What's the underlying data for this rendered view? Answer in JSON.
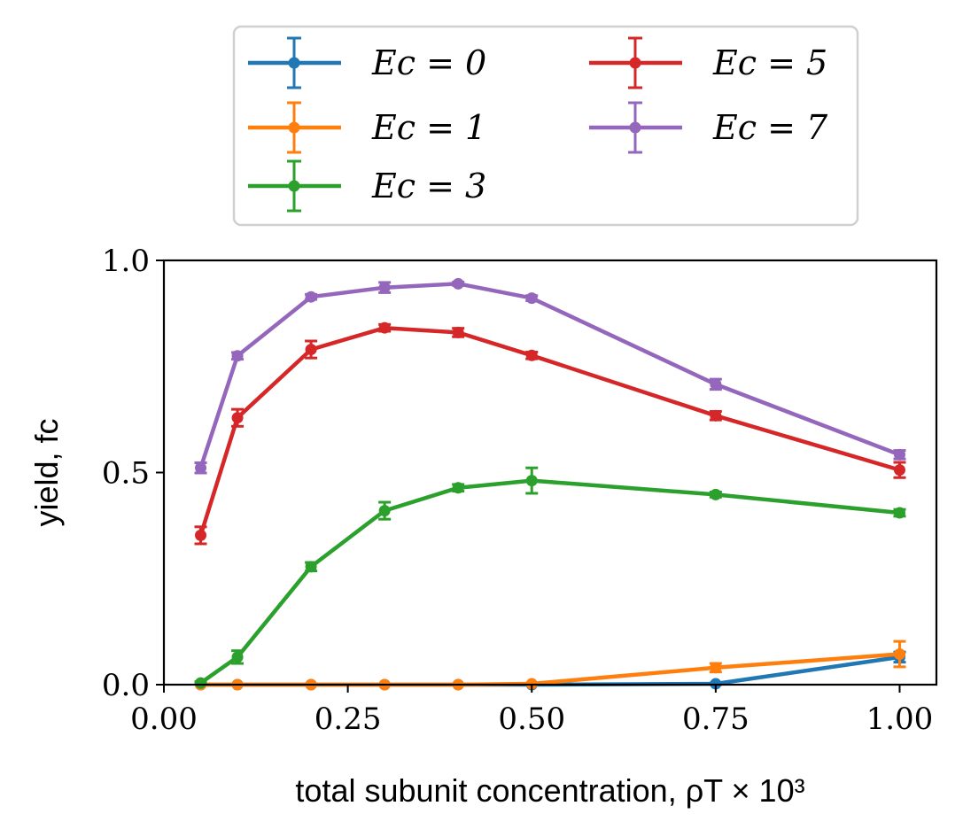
{
  "chart_data": {
    "type": "line",
    "xlabel": "total subunit concentration, ρT × 10³",
    "ylabel": "yield, fc",
    "xlim": [
      0.0,
      1.05
    ],
    "ylim": [
      0.0,
      1.0
    ],
    "xticks": [
      0.0,
      0.25,
      0.5,
      0.75,
      1.0
    ],
    "xtick_labels": [
      "0.00",
      "0.25",
      "0.50",
      "0.75",
      "1.00"
    ],
    "yticks": [
      0.0,
      0.5,
      1.0
    ],
    "ytick_labels": [
      "0.0",
      "0.5",
      "1.0"
    ],
    "grid": false,
    "legend_placement": "top-center-outside",
    "legend_columns": 2,
    "series": [
      {
        "name": "E_c = 0",
        "legend_label": "Ec = 0",
        "color": "#1f77b4",
        "x": [
          0.05,
          0.1,
          0.2,
          0.3,
          0.4,
          0.5,
          0.75,
          1.0
        ],
        "y": [
          0.0,
          0.0,
          0.0,
          0.0,
          0.0,
          0.0,
          0.002,
          0.065
        ],
        "err": [
          0.0,
          0.0,
          0.0,
          0.0,
          0.0,
          0.0,
          0.002,
          0.012
        ]
      },
      {
        "name": "E_c = 1",
        "legend_label": "Ec = 1",
        "color": "#ff7f0e",
        "x": [
          0.05,
          0.1,
          0.2,
          0.3,
          0.4,
          0.5,
          0.75,
          1.0
        ],
        "y": [
          0.0,
          0.0,
          0.0,
          0.0,
          0.0,
          0.002,
          0.04,
          0.072
        ],
        "err": [
          0.0,
          0.0,
          0.0,
          0.0,
          0.0,
          0.002,
          0.01,
          0.03
        ]
      },
      {
        "name": "E_c = 3",
        "legend_label": "Ec = 3",
        "color": "#2ca02c",
        "x": [
          0.05,
          0.1,
          0.2,
          0.3,
          0.4,
          0.5,
          0.75,
          1.0
        ],
        "y": [
          0.004,
          0.065,
          0.278,
          0.41,
          0.464,
          0.481,
          0.448,
          0.405
        ],
        "err": [
          0.003,
          0.015,
          0.01,
          0.02,
          0.008,
          0.03,
          0.006,
          0.008
        ]
      },
      {
        "name": "E_c = 5",
        "legend_label": "Ec = 5",
        "color": "#d62728",
        "x": [
          0.05,
          0.1,
          0.2,
          0.3,
          0.4,
          0.5,
          0.75,
          1.0
        ],
        "y": [
          0.352,
          0.629,
          0.79,
          0.841,
          0.83,
          0.776,
          0.634,
          0.506
        ],
        "err": [
          0.02,
          0.02,
          0.02,
          0.008,
          0.01,
          0.008,
          0.01,
          0.018
        ]
      },
      {
        "name": "E_c = 7",
        "legend_label": "Ec = 7",
        "color": "#9467bd",
        "x": [
          0.05,
          0.1,
          0.2,
          0.3,
          0.4,
          0.5,
          0.75,
          1.0
        ],
        "y": [
          0.511,
          0.775,
          0.914,
          0.936,
          0.945,
          0.911,
          0.708,
          0.542
        ],
        "err": [
          0.012,
          0.008,
          0.006,
          0.012,
          0.004,
          0.006,
          0.012,
          0.01
        ]
      }
    ]
  }
}
